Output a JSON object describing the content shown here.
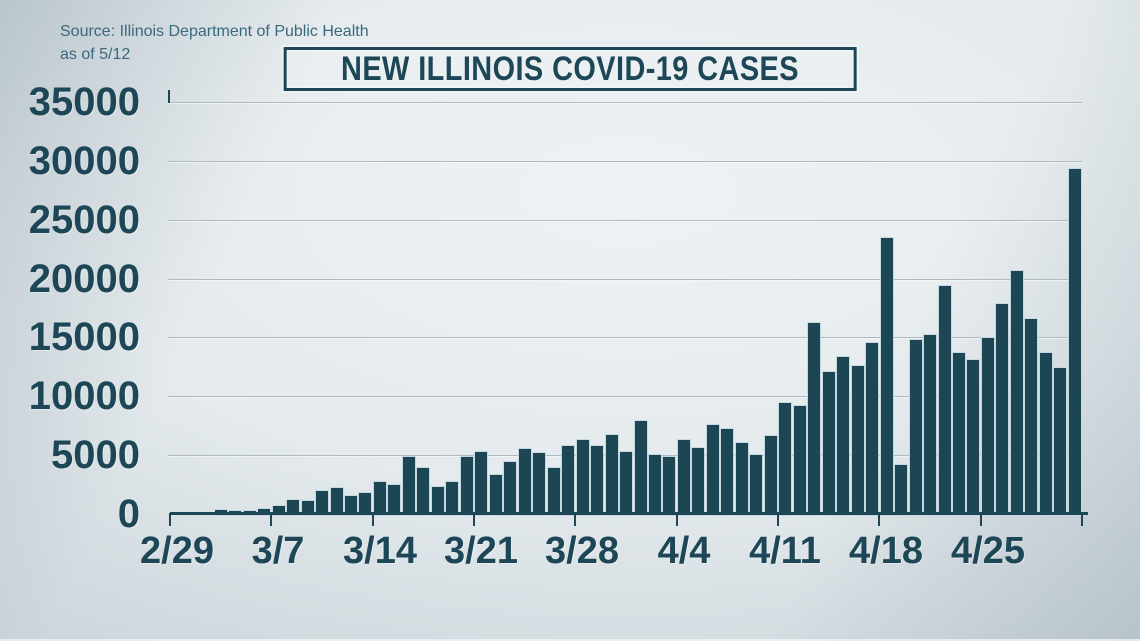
{
  "source": {
    "line1": "Source: Illinois Department of Public Health",
    "line2": "as of 5/12"
  },
  "chart_data": {
    "type": "bar",
    "title": "NEW ILLINOIS COVID-19 CASES",
    "xlabel": "",
    "ylabel": "",
    "ylim": [
      0,
      35000
    ],
    "ytick_interval": 5000,
    "ytick_labels": [
      "0",
      "5000",
      "10000",
      "15000",
      "20000",
      "25000",
      "30000",
      "35000"
    ],
    "xtick_labels": [
      "2/29",
      "3/7",
      "3/14",
      "3/21",
      "3/28",
      "4/4",
      "4/11",
      "4/18",
      "4/25",
      ""
    ],
    "grid": "horizontal",
    "legend": "none",
    "x": [
      "2/29",
      "3/1",
      "3/2",
      "3/3",
      "3/4",
      "3/5",
      "3/6",
      "3/7",
      "3/8",
      "3/9",
      "3/10",
      "3/11",
      "3/12",
      "3/13",
      "3/14",
      "3/15",
      "3/16",
      "3/17",
      "3/18",
      "3/19",
      "3/20",
      "3/21",
      "3/22",
      "3/23",
      "3/24",
      "3/25",
      "3/26",
      "3/27",
      "3/28",
      "3/29",
      "3/30",
      "3/31",
      "4/1",
      "4/2",
      "4/3",
      "4/4",
      "4/5",
      "4/6",
      "4/7",
      "4/8",
      "4/9",
      "4/10",
      "4/11",
      "4/12",
      "4/13",
      "4/14",
      "4/15",
      "4/16",
      "4/17",
      "4/18",
      "4/19",
      "4/20",
      "4/21",
      "4/22",
      "4/23",
      "4/24",
      "4/25",
      "4/26",
      "4/27",
      "4/28",
      "4/29",
      "4/30",
      "5/1"
    ],
    "values": [
      0,
      0,
      0,
      350,
      220,
      250,
      400,
      700,
      1150,
      1100,
      1950,
      2200,
      1500,
      1750,
      2750,
      2500,
      4850,
      3950,
      2300,
      2750,
      4800,
      5250,
      3300,
      4450,
      5500,
      5150,
      3900,
      5750,
      6250,
      5800,
      6700,
      5250,
      7900,
      5000,
      4800,
      6300,
      5600,
      7600,
      7250,
      6000,
      5050,
      6650,
      9400,
      9200,
      16200,
      12100,
      13350,
      12600,
      14550,
      23450,
      4150,
      14750,
      15200,
      19350,
      13700,
      13050,
      14950,
      17800,
      20650,
      16550,
      13650,
      12400,
      29300
    ],
    "colors": {
      "bar": "#1d4654",
      "bar_outline": "#c6d8df",
      "text": "#1d4656",
      "gridline": "#aeb9c2",
      "axis": "#1d4656",
      "background_center": "#eff2f4",
      "background_edge": "#aebbc3"
    }
  }
}
